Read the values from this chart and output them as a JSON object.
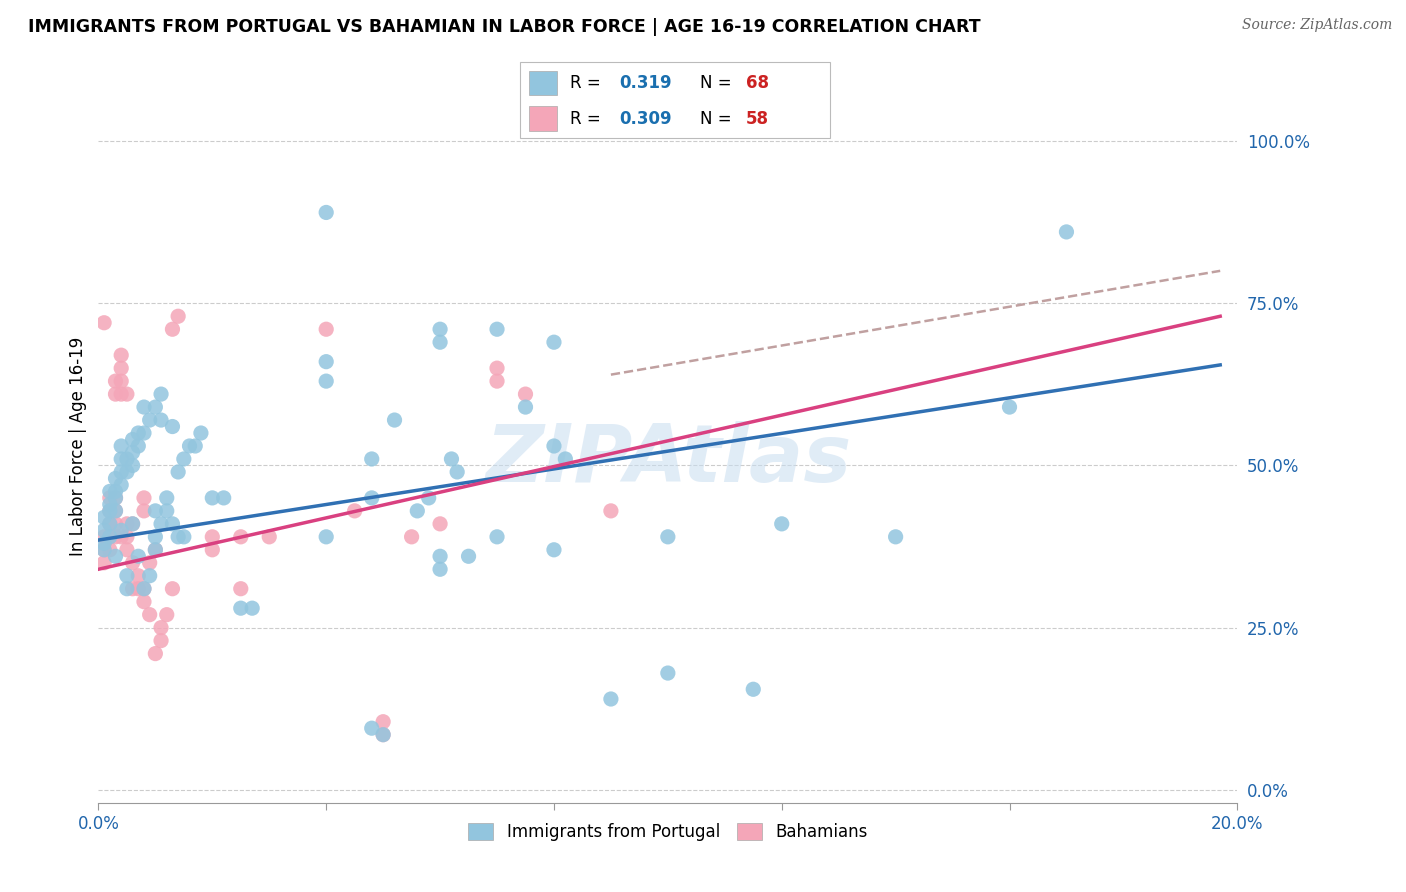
{
  "title": "IMMIGRANTS FROM PORTUGAL VS BAHAMIAN IN LABOR FORCE | AGE 16-19 CORRELATION CHART",
  "source": "Source: ZipAtlas.com",
  "ylabel": "In Labor Force | Age 16-19",
  "xlim": [
    0.0,
    0.2
  ],
  "ylim": [
    -0.02,
    1.08
  ],
  "yticks": [
    0.0,
    0.25,
    0.5,
    0.75,
    1.0
  ],
  "ytick_labels": [
    "0.0%",
    "25.0%",
    "50.0%",
    "75.0%",
    "100.0%"
  ],
  "xticks": [
    0.0,
    0.04,
    0.08,
    0.12,
    0.16,
    0.2
  ],
  "xtick_labels": [
    "0.0%",
    "",
    "",
    "",
    "",
    "20.0%"
  ],
  "watermark": "ZIPAtlas",
  "blue_color": "#92c5de",
  "pink_color": "#f4a6b8",
  "blue_line_color": "#3070b3",
  "pink_line_color": "#d94080",
  "dashed_line_color": "#c0a0a0",
  "blue_scatter": [
    [
      0.001,
      0.4
    ],
    [
      0.001,
      0.42
    ],
    [
      0.001,
      0.38
    ],
    [
      0.001,
      0.37
    ],
    [
      0.002,
      0.41
    ],
    [
      0.002,
      0.43
    ],
    [
      0.002,
      0.44
    ],
    [
      0.002,
      0.39
    ],
    [
      0.002,
      0.46
    ],
    [
      0.003,
      0.43
    ],
    [
      0.003,
      0.45
    ],
    [
      0.003,
      0.46
    ],
    [
      0.003,
      0.48
    ],
    [
      0.003,
      0.36
    ],
    [
      0.004,
      0.47
    ],
    [
      0.004,
      0.49
    ],
    [
      0.004,
      0.51
    ],
    [
      0.004,
      0.53
    ],
    [
      0.004,
      0.4
    ],
    [
      0.005,
      0.49
    ],
    [
      0.005,
      0.51
    ],
    [
      0.005,
      0.31
    ],
    [
      0.005,
      0.33
    ],
    [
      0.006,
      0.5
    ],
    [
      0.006,
      0.52
    ],
    [
      0.006,
      0.54
    ],
    [
      0.006,
      0.41
    ],
    [
      0.007,
      0.53
    ],
    [
      0.007,
      0.55
    ],
    [
      0.007,
      0.36
    ],
    [
      0.008,
      0.55
    ],
    [
      0.008,
      0.59
    ],
    [
      0.008,
      0.31
    ],
    [
      0.009,
      0.57
    ],
    [
      0.009,
      0.33
    ],
    [
      0.01,
      0.59
    ],
    [
      0.01,
      0.43
    ],
    [
      0.01,
      0.39
    ],
    [
      0.01,
      0.37
    ],
    [
      0.011,
      0.61
    ],
    [
      0.011,
      0.57
    ],
    [
      0.011,
      0.41
    ],
    [
      0.012,
      0.45
    ],
    [
      0.012,
      0.43
    ],
    [
      0.013,
      0.56
    ],
    [
      0.013,
      0.41
    ],
    [
      0.014,
      0.49
    ],
    [
      0.014,
      0.39
    ],
    [
      0.015,
      0.51
    ],
    [
      0.015,
      0.39
    ],
    [
      0.016,
      0.53
    ],
    [
      0.017,
      0.53
    ],
    [
      0.018,
      0.55
    ],
    [
      0.02,
      0.45
    ],
    [
      0.022,
      0.45
    ],
    [
      0.025,
      0.28
    ],
    [
      0.027,
      0.28
    ],
    [
      0.04,
      0.66
    ],
    [
      0.04,
      0.63
    ],
    [
      0.04,
      0.39
    ],
    [
      0.048,
      0.51
    ],
    [
      0.048,
      0.45
    ],
    [
      0.048,
      0.095
    ],
    [
      0.05,
      0.085
    ],
    [
      0.052,
      0.57
    ],
    [
      0.056,
      0.43
    ],
    [
      0.058,
      0.45
    ],
    [
      0.06,
      0.36
    ],
    [
      0.06,
      0.34
    ],
    [
      0.062,
      0.51
    ],
    [
      0.063,
      0.49
    ],
    [
      0.065,
      0.36
    ],
    [
      0.07,
      0.39
    ],
    [
      0.075,
      0.59
    ],
    [
      0.08,
      0.53
    ],
    [
      0.08,
      0.37
    ],
    [
      0.082,
      0.51
    ],
    [
      0.09,
      0.14
    ],
    [
      0.1,
      0.18
    ],
    [
      0.1,
      0.39
    ],
    [
      0.115,
      0.155
    ],
    [
      0.12,
      0.41
    ],
    [
      0.14,
      0.39
    ],
    [
      0.16,
      0.59
    ],
    [
      0.17,
      0.86
    ],
    [
      0.04,
      0.89
    ],
    [
      0.06,
      0.71
    ],
    [
      0.06,
      0.69
    ],
    [
      0.07,
      0.71
    ],
    [
      0.08,
      0.69
    ]
  ],
  "pink_scatter": [
    [
      0.001,
      0.72
    ],
    [
      0.001,
      0.35
    ],
    [
      0.001,
      0.37
    ],
    [
      0.001,
      0.39
    ],
    [
      0.002,
      0.37
    ],
    [
      0.002,
      0.39
    ],
    [
      0.002,
      0.41
    ],
    [
      0.002,
      0.45
    ],
    [
      0.002,
      0.43
    ],
    [
      0.003,
      0.39
    ],
    [
      0.003,
      0.41
    ],
    [
      0.003,
      0.43
    ],
    [
      0.003,
      0.45
    ],
    [
      0.003,
      0.61
    ],
    [
      0.003,
      0.63
    ],
    [
      0.004,
      0.39
    ],
    [
      0.004,
      0.61
    ],
    [
      0.004,
      0.63
    ],
    [
      0.004,
      0.65
    ],
    [
      0.004,
      0.67
    ],
    [
      0.005,
      0.37
    ],
    [
      0.005,
      0.39
    ],
    [
      0.005,
      0.41
    ],
    [
      0.005,
      0.61
    ],
    [
      0.006,
      0.41
    ],
    [
      0.006,
      0.35
    ],
    [
      0.006,
      0.31
    ],
    [
      0.007,
      0.31
    ],
    [
      0.007,
      0.33
    ],
    [
      0.008,
      0.31
    ],
    [
      0.008,
      0.29
    ],
    [
      0.008,
      0.43
    ],
    [
      0.008,
      0.45
    ],
    [
      0.009,
      0.27
    ],
    [
      0.009,
      0.35
    ],
    [
      0.01,
      0.37
    ],
    [
      0.01,
      0.21
    ],
    [
      0.011,
      0.23
    ],
    [
      0.011,
      0.25
    ],
    [
      0.012,
      0.27
    ],
    [
      0.013,
      0.31
    ],
    [
      0.013,
      0.71
    ],
    [
      0.014,
      0.73
    ],
    [
      0.02,
      0.37
    ],
    [
      0.02,
      0.39
    ],
    [
      0.025,
      0.39
    ],
    [
      0.025,
      0.31
    ],
    [
      0.03,
      0.39
    ],
    [
      0.04,
      0.71
    ],
    [
      0.045,
      0.43
    ],
    [
      0.05,
      0.085
    ],
    [
      0.05,
      0.105
    ],
    [
      0.055,
      0.39
    ],
    [
      0.06,
      0.41
    ],
    [
      0.07,
      0.65
    ],
    [
      0.07,
      0.63
    ],
    [
      0.075,
      0.61
    ],
    [
      0.09,
      0.43
    ]
  ],
  "blue_trend_x": [
    0.0,
    0.197
  ],
  "blue_trend_y": [
    0.385,
    0.655
  ],
  "pink_trend_x": [
    0.0,
    0.197
  ],
  "pink_trend_y": [
    0.34,
    0.73
  ],
  "dashed_trend_x": [
    0.09,
    0.197
  ],
  "dashed_trend_y": [
    0.64,
    0.8
  ]
}
